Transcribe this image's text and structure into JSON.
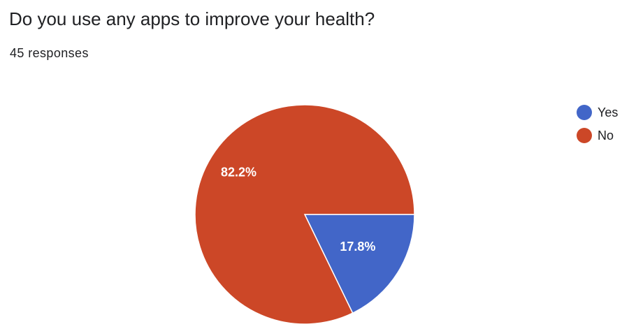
{
  "question": {
    "title": "Do you use any apps to improve your health?",
    "responses_label": "45 responses"
  },
  "colors": {
    "yes": "#4266c8",
    "no": "#cc4727"
  },
  "chart_data": {
    "type": "pie",
    "title": "Do you use any apps to improve your health?",
    "slices": [
      {
        "name": "Yes",
        "value": 17.8,
        "label": "17.8%",
        "color": "#4266c8"
      },
      {
        "name": "No",
        "value": 82.2,
        "label": "82.2%",
        "color": "#cc4727"
      }
    ],
    "legend": {
      "placement": "top-right",
      "entries": [
        "Yes",
        "No"
      ]
    }
  }
}
